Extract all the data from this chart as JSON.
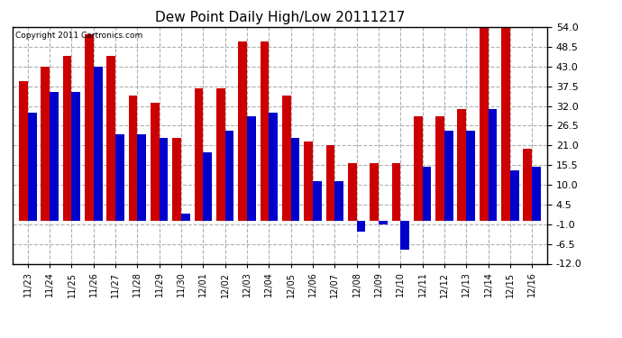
{
  "title": "Dew Point Daily High/Low 20111217",
  "copyright": "Copyright 2011 Cartronics.com",
  "dates": [
    "11/23",
    "11/24",
    "11/25",
    "11/26",
    "11/27",
    "11/28",
    "11/29",
    "11/30",
    "12/01",
    "12/02",
    "12/03",
    "12/04",
    "12/05",
    "12/06",
    "12/07",
    "12/08",
    "12/09",
    "12/10",
    "12/11",
    "12/12",
    "12/13",
    "12/14",
    "12/15",
    "12/16"
  ],
  "highs": [
    39,
    43,
    46,
    52,
    46,
    35,
    33,
    23,
    37,
    37,
    50,
    50,
    35,
    22,
    21,
    16,
    16,
    16,
    29,
    29,
    31,
    54,
    54,
    20
  ],
  "lows": [
    30,
    36,
    36,
    43,
    24,
    24,
    23,
    2,
    19,
    25,
    29,
    30,
    23,
    11,
    11,
    -3,
    -1,
    -8,
    15,
    25,
    25,
    31,
    14,
    15
  ],
  "high_color": "#cc0000",
  "low_color": "#0000cc",
  "background_color": "#ffffff",
  "plot_bg_color": "#ffffff",
  "grid_color": "#b0b0b0",
  "ylim": [
    -12,
    54
  ],
  "yticks": [
    -12.0,
    -6.5,
    -1.0,
    4.5,
    10.0,
    15.5,
    21.0,
    26.5,
    32.0,
    37.5,
    43.0,
    48.5,
    54.0
  ],
  "bar_width": 0.4,
  "figwidth": 6.9,
  "figheight": 3.75,
  "dpi": 100
}
